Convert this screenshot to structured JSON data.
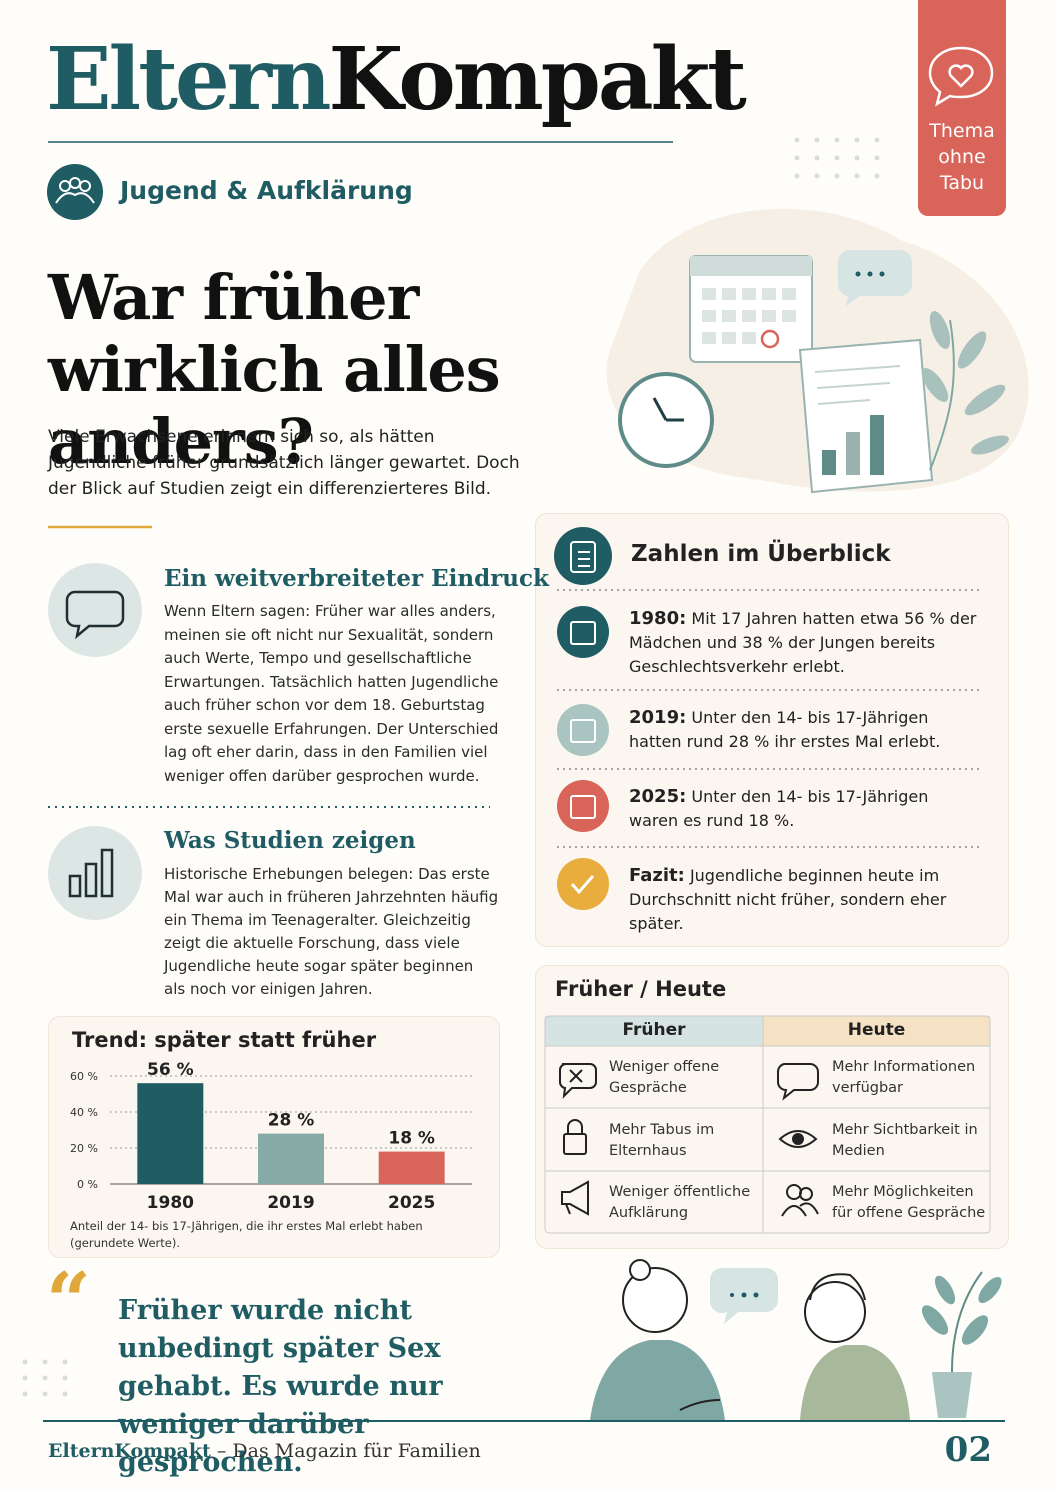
{
  "header": {
    "brand_1": "Eltern",
    "brand_2": "Kompakt",
    "badge": "Thema ohne Tabu",
    "section": "Jugend & Aufklärung"
  },
  "headline": "War früher wirklich alles anders?",
  "intro": "Viele Erwachsene erinnern sich so, als hätten Jugendliche früher grundsätzlich länger gewartet. Doch der Blick auf Studien zeigt ein differenzierteres Bild.",
  "blocks": [
    {
      "title": "Ein weitverbreiteter Eindruck",
      "text": "Wenn Eltern sagen: Früher war alles anders, meinen sie oft nicht nur Sexualität, sondern auch Werte, Tempo und gesellschaftliche Erwartungen. Tatsächlich hatten Jugendliche auch früher schon vor dem 18. Geburtstag erste sexuelle Erfahrungen. Der Unterschied lag oft eher darin, dass in den Familien viel weniger offen darüber gesprochen wurde."
    },
    {
      "title": "Was Studien zeigen",
      "text": "Historische Erhebungen belegen: Das erste Mal war auch in früheren Jahrzehnten häufig ein Thema im Teenageralter. Gleichzeitig zeigt die aktuelle Forschung, dass viele Jugendliche heute sogar später beginnen als noch vor einigen Jahren."
    }
  ],
  "chart_data": {
    "type": "bar",
    "title": "Trend: später statt früher",
    "categories": [
      "1980",
      "2019",
      "2025"
    ],
    "values": [
      56,
      28,
      18
    ],
    "value_labels": [
      "56 %",
      "28 %",
      "18 %"
    ],
    "colors": [
      "#1f5c63",
      "#86aba6",
      "#d9655a"
    ],
    "ylim": [
      0,
      60
    ],
    "yticks": [
      {
        "value": 0,
        "label": "0 %"
      },
      {
        "value": 20,
        "label": "20 %"
      },
      {
        "value": 40,
        "label": "40 %"
      },
      {
        "value": 60,
        "label": "60 %"
      }
    ],
    "grid": true,
    "caption": "Anteil der 14- bis 17-Jährigen, die ihr erstes Mal erlebt haben (gerundete Werte)."
  },
  "overview": {
    "title": "Zahlen im Überblick",
    "items": [
      {
        "label": "1980:",
        "text": "Mit 17 Jahren hatten etwa 56 % der Mädchen und 38 % der Jungen bereits Geschlechtsverkehr erlebt."
      },
      {
        "label": "2019:",
        "text": "Unter den 14- bis 17-Jährigen hatten rund 28 % ihr erstes Mal erlebt."
      },
      {
        "label": "2025:",
        "text": "Unter den 14- bis 17-Jährigen waren es rund 18 %."
      },
      {
        "label": "Fazit:",
        "text": "Jugendliche beginnen heute im Durchschnitt nicht früher, sondern eher später."
      }
    ]
  },
  "comparison": {
    "title": "Früher / Heute",
    "headers": [
      "Früher",
      "Heute"
    ],
    "rows": [
      [
        "Weniger offene Gespräche",
        "Mehr Informationen verfügbar"
      ],
      [
        "Mehr Tabus im Elternhaus",
        "Mehr Sichtbarkeit in Medien"
      ],
      [
        "Weniger öffentliche Aufklärung",
        "Mehr Möglichkeiten für offene Gespräche"
      ]
    ]
  },
  "quote": "Früher wurde nicht unbedingt später Sex gehabt. Es wurde nur weniger darüber gesprochen.",
  "footer": {
    "brand": "ElternKompakt",
    "tagline": "– Das Magazin für Familien",
    "page": "02"
  }
}
